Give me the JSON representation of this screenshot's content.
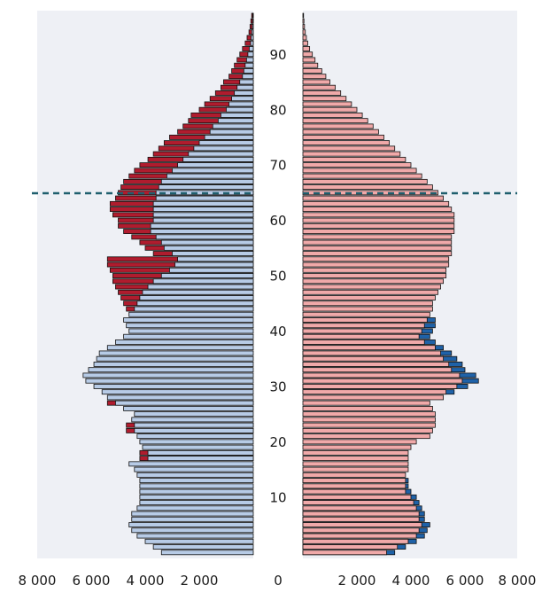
{
  "chart_data": {
    "type": "bar",
    "layout": "population-pyramid",
    "age_axis": {
      "label": "",
      "ticks": [
        "10",
        "20",
        "30",
        "40",
        "50",
        "60",
        "70",
        "80",
        "90"
      ],
      "range": [
        0,
        97
      ]
    },
    "x_axis": {
      "label": "",
      "left_ticks": [
        "8 000",
        "6 000",
        "4 000",
        "2 000"
      ],
      "right_ticks": [
        "2 000",
        "4 000",
        "6 000",
        "8 000"
      ],
      "center_tick": "0",
      "range": [
        0,
        8000
      ]
    },
    "reference_line": {
      "age": 65,
      "style": "dashed",
      "color": "#1f5f6e"
    },
    "colors": {
      "left_base": "#b7cbe6",
      "left_extra": "#b01c2e",
      "right_base": "#f0a9a9",
      "right_extra": "#1f62a8",
      "panel_bg": "#eef0f5"
    },
    "series": [
      {
        "name": "",
        "side": "left",
        "values": [
          3400,
          3700,
          4000,
          4300,
          4500,
          4600,
          4500,
          4500,
          4300,
          4200,
          4200,
          4200,
          4200,
          4200,
          4300,
          4400,
          4600,
          3900,
          3900,
          4100,
          4200,
          4300,
          4400,
          4400,
          4500,
          4400,
          4800,
          5100,
          5400,
          5600,
          5900,
          6200,
          6300,
          6100,
          5900,
          5800,
          5700,
          5400,
          5100,
          4800,
          4600,
          4700,
          4800,
          4600,
          4400,
          4300,
          4200,
          4100,
          3900,
          3700,
          3400,
          3100,
          2900,
          2800,
          3000,
          3300,
          3400,
          3600,
          3800,
          3800,
          3700,
          3700,
          3700,
          3700,
          3600,
          3600,
          3500,
          3400,
          3200,
          3000,
          2800,
          2600,
          2400,
          2200,
          2000,
          1800,
          1600,
          1500,
          1300,
          1200,
          1000,
          900,
          800,
          700,
          600,
          500,
          400,
          350,
          300,
          250,
          200,
          150,
          100,
          80,
          60,
          40,
          30,
          20
        ],
        "extra": [
          0,
          0,
          0,
          0,
          0,
          0,
          0,
          0,
          0,
          0,
          0,
          0,
          0,
          0,
          0,
          0,
          0,
          300,
          300,
          0,
          0,
          0,
          300,
          300,
          0,
          0,
          0,
          300,
          0,
          0,
          0,
          0,
          0,
          0,
          0,
          0,
          0,
          0,
          0,
          0,
          0,
          0,
          0,
          0,
          300,
          500,
          700,
          900,
          1200,
          1500,
          1800,
          2200,
          2500,
          2600,
          700,
          700,
          800,
          900,
          1000,
          1200,
          1300,
          1500,
          1600,
          1600,
          1500,
          1400,
          1400,
          1400,
          1400,
          1400,
          1400,
          1300,
          1300,
          1300,
          1300,
          1300,
          1200,
          1100,
          1100,
          1100,
          1000,
          900,
          800,
          700,
          600,
          600,
          500,
          450,
          400,
          350,
          300,
          250,
          200,
          150,
          100,
          80,
          60,
          40
        ]
      },
      {
        "name": "",
        "side": "right",
        "values": [
          3100,
          3500,
          3900,
          4200,
          4300,
          4400,
          4300,
          4300,
          4200,
          4100,
          4000,
          3800,
          3800,
          3800,
          3800,
          3900,
          3900,
          3900,
          3900,
          4000,
          4200,
          4700,
          4800,
          4900,
          4900,
          4900,
          4800,
          4700,
          5200,
          5300,
          5700,
          5900,
          5800,
          5500,
          5400,
          5200,
          5100,
          4900,
          4500,
          4300,
          4400,
          4500,
          4600,
          4700,
          4800,
          4800,
          4900,
          5000,
          5100,
          5200,
          5300,
          5300,
          5400,
          5400,
          5500,
          5500,
          5500,
          5500,
          5600,
          5600,
          5600,
          5600,
          5500,
          5400,
          5200,
          5000,
          4800,
          4600,
          4400,
          4200,
          4000,
          3800,
          3600,
          3400,
          3200,
          3000,
          2800,
          2600,
          2400,
          2200,
          2000,
          1800,
          1600,
          1400,
          1200,
          1000,
          850,
          700,
          550,
          450,
          350,
          250,
          180,
          130,
          90,
          60,
          40,
          25
        ],
        "extra": [
          300,
          300,
          300,
          300,
          300,
          300,
          200,
          200,
          200,
          200,
          200,
          200,
          100,
          100,
          0,
          0,
          0,
          0,
          0,
          0,
          0,
          0,
          0,
          0,
          0,
          0,
          0,
          0,
          0,
          300,
          400,
          600,
          600,
          500,
          500,
          500,
          400,
          300,
          400,
          400,
          400,
          400,
          300,
          0,
          0,
          0,
          0,
          0,
          0,
          0,
          0,
          0,
          0,
          0,
          0,
          0,
          0,
          0,
          0,
          0,
          0,
          0,
          0,
          0,
          0,
          0,
          0,
          0,
          0,
          0,
          0,
          0,
          0,
          0,
          0,
          0,
          0,
          0,
          0,
          0,
          0,
          0,
          0,
          0,
          0,
          0,
          0,
          0,
          0,
          0,
          0,
          0,
          0,
          0,
          0,
          0,
          0,
          0
        ]
      }
    ]
  }
}
